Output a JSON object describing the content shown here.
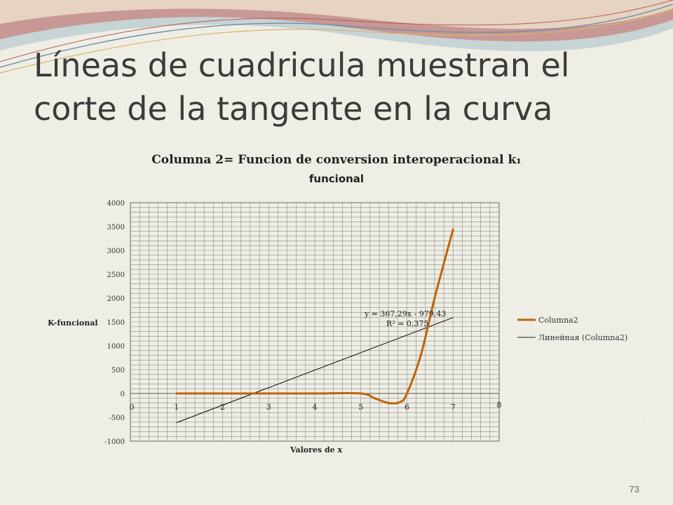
{
  "slide": {
    "title_lines": [
      "Líneas de cuadricula muestran el",
      "corte de la tangente en la curva"
    ],
    "page_number": "73"
  },
  "colors": {
    "curve": "#c0630a",
    "trendline": "#1a1a1a",
    "grid": "#8a8a8a",
    "swoosh_red": "#c8665e",
    "swoosh_blue": "#7fa3b9",
    "swoosh_gold": "#d9b46a"
  },
  "chart_data": {
    "type": "line",
    "title": "Columna 2= Funcion de conversion interoperacional k₁",
    "subtitle": "funcional",
    "xlabel": "Valores de x",
    "ylabel": "K-funcional",
    "xlim": [
      0,
      8
    ],
    "ylim": [
      -1000,
      4000
    ],
    "x_ticks": [
      "0",
      "1",
      "2",
      "3",
      "4",
      "5",
      "6",
      "7",
      "8"
    ],
    "y_ticks": [
      "4000",
      "3500",
      "3000",
      "2500",
      "2000",
      "1500",
      "1000",
      "500",
      "0",
      "-500",
      "-1000"
    ],
    "grid": true,
    "legend_position": "right",
    "series": [
      {
        "name": "Columna2",
        "type": "line",
        "points": [
          [
            1,
            0
          ],
          [
            2,
            0
          ],
          [
            3,
            0
          ],
          [
            4,
            0
          ],
          [
            5,
            0
          ],
          [
            5.3,
            -100
          ],
          [
            5.6,
            -200
          ],
          [
            5.85,
            -180
          ],
          [
            6,
            0
          ],
          [
            6.3,
            800
          ],
          [
            6.6,
            2000
          ],
          [
            7,
            3440
          ]
        ]
      },
      {
        "name": "Линейная (Columna2)",
        "type": "trendline",
        "slope": 367.29,
        "intercept": -979.43,
        "x_range": [
          1,
          7
        ]
      }
    ],
    "annotations": {
      "equation": "y = 367,29x - 979,43",
      "r_squared": "R² = 0,375"
    }
  }
}
